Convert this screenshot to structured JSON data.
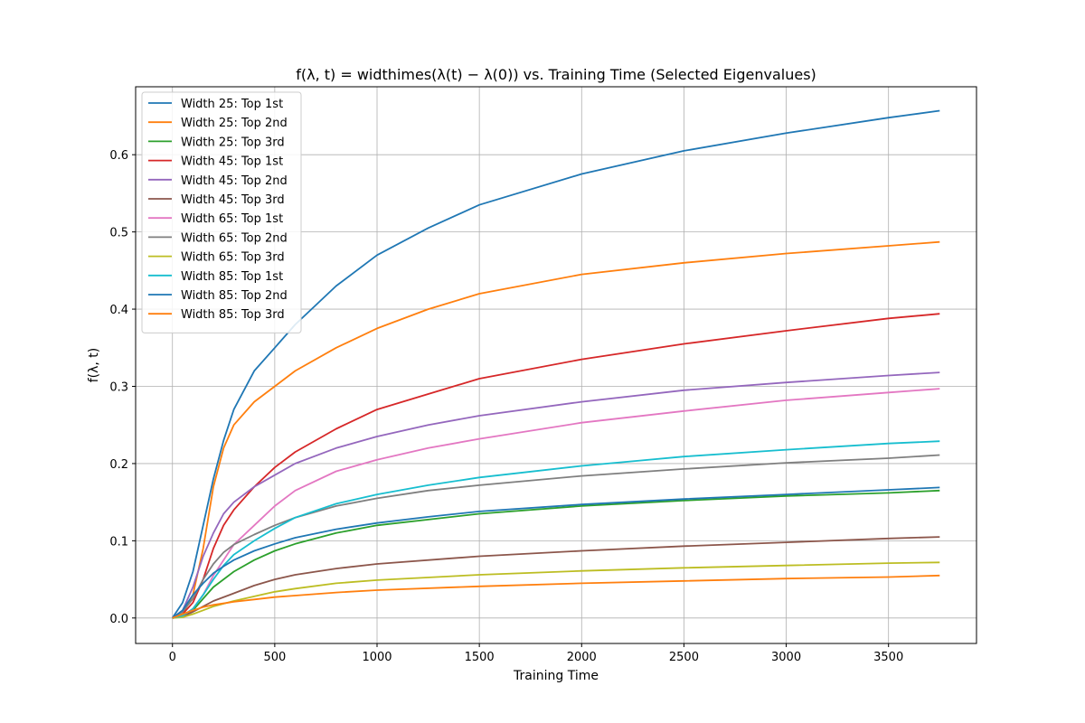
{
  "chart_data": {
    "type": "line",
    "title": "f(λ, t) = widthimes(λ(t) − λ(0)) vs. Training Time (Selected Eigenvalues)",
    "xlabel": "Training Time",
    "ylabel": "f(λ, t)",
    "xlim": [
      -180,
      3930
    ],
    "ylim": [
      -0.033,
      0.688
    ],
    "xticks": [
      0,
      500,
      1000,
      1500,
      2000,
      2500,
      3000,
      3500
    ],
    "yticks": [
      0.0,
      0.1,
      0.2,
      0.3,
      0.4,
      0.5,
      0.6
    ],
    "grid": true,
    "legend_position": "top-left",
    "series": [
      {
        "name": "Width 25: Top 1st",
        "color": "#1f77b4",
        "x": [
          0,
          50,
          100,
          150,
          200,
          250,
          300,
          400,
          500,
          600,
          800,
          1000,
          1250,
          1500,
          2000,
          2500,
          3000,
          3500,
          3750
        ],
        "values": [
          0.0,
          0.02,
          0.06,
          0.12,
          0.18,
          0.23,
          0.27,
          0.32,
          0.35,
          0.38,
          0.43,
          0.47,
          0.505,
          0.535,
          0.575,
          0.605,
          0.628,
          0.648,
          0.657
        ]
      },
      {
        "name": "Width 25: Top 2nd",
        "color": "#ff7f0e",
        "x": [
          0,
          50,
          100,
          150,
          200,
          250,
          300,
          400,
          500,
          600,
          800,
          1000,
          1250,
          1500,
          2000,
          2500,
          3000,
          3500,
          3750
        ],
        "values": [
          0.0,
          0.005,
          0.03,
          0.09,
          0.17,
          0.22,
          0.25,
          0.28,
          0.3,
          0.32,
          0.35,
          0.375,
          0.4,
          0.42,
          0.445,
          0.46,
          0.472,
          0.482,
          0.487
        ]
      },
      {
        "name": "Width 25: Top 3rd",
        "color": "#2ca02c",
        "x": [
          0,
          50,
          100,
          150,
          200,
          300,
          400,
          500,
          600,
          800,
          1000,
          1500,
          2000,
          2500,
          3000,
          3500,
          3750
        ],
        "values": [
          0.0,
          0.002,
          0.01,
          0.025,
          0.04,
          0.06,
          0.075,
          0.087,
          0.096,
          0.11,
          0.12,
          0.135,
          0.145,
          0.152,
          0.158,
          0.162,
          0.165
        ]
      },
      {
        "name": "Width 45: Top 1st",
        "color": "#d62728",
        "x": [
          0,
          50,
          100,
          150,
          200,
          250,
          300,
          400,
          500,
          600,
          800,
          1000,
          1250,
          1500,
          2000,
          2500,
          3000,
          3500,
          3750
        ],
        "values": [
          0.0,
          0.005,
          0.02,
          0.05,
          0.09,
          0.12,
          0.14,
          0.17,
          0.195,
          0.215,
          0.245,
          0.27,
          0.29,
          0.31,
          0.335,
          0.355,
          0.372,
          0.388,
          0.394
        ]
      },
      {
        "name": "Width 45: Top 2nd",
        "color": "#9467bd",
        "x": [
          0,
          50,
          100,
          150,
          200,
          250,
          300,
          400,
          500,
          600,
          800,
          1000,
          1250,
          1500,
          2000,
          2500,
          3000,
          3500,
          3750
        ],
        "values": [
          0.0,
          0.01,
          0.04,
          0.08,
          0.11,
          0.135,
          0.15,
          0.17,
          0.185,
          0.2,
          0.22,
          0.235,
          0.25,
          0.262,
          0.28,
          0.295,
          0.305,
          0.314,
          0.318
        ]
      },
      {
        "name": "Width 45: Top 3rd",
        "color": "#8c564b",
        "x": [
          0,
          50,
          100,
          150,
          200,
          300,
          400,
          500,
          600,
          800,
          1000,
          1500,
          2000,
          2500,
          3000,
          3500,
          3750
        ],
        "values": [
          0.0,
          0.002,
          0.008,
          0.015,
          0.022,
          0.032,
          0.042,
          0.05,
          0.056,
          0.064,
          0.07,
          0.08,
          0.087,
          0.093,
          0.098,
          0.103,
          0.105
        ]
      },
      {
        "name": "Width 65: Top 1st",
        "color": "#e377c2",
        "x": [
          0,
          50,
          100,
          150,
          200,
          250,
          300,
          400,
          500,
          600,
          800,
          1000,
          1250,
          1500,
          2000,
          2500,
          3000,
          3500,
          3750
        ],
        "values": [
          0.0,
          0.003,
          0.012,
          0.03,
          0.055,
          0.075,
          0.095,
          0.12,
          0.145,
          0.165,
          0.19,
          0.205,
          0.22,
          0.232,
          0.253,
          0.268,
          0.282,
          0.292,
          0.297
        ]
      },
      {
        "name": "Width 65: Top 2nd",
        "color": "#7f7f7f",
        "x": [
          0,
          50,
          100,
          150,
          200,
          250,
          300,
          400,
          500,
          600,
          800,
          1000,
          1250,
          1500,
          2000,
          2500,
          3000,
          3500,
          3750
        ],
        "values": [
          0.0,
          0.008,
          0.025,
          0.05,
          0.07,
          0.085,
          0.095,
          0.108,
          0.12,
          0.13,
          0.145,
          0.155,
          0.165,
          0.172,
          0.184,
          0.193,
          0.201,
          0.207,
          0.211
        ]
      },
      {
        "name": "Width 65: Top 3rd",
        "color": "#bcbd22",
        "x": [
          0,
          50,
          100,
          150,
          200,
          300,
          400,
          500,
          600,
          800,
          1000,
          1500,
          2000,
          2500,
          3000,
          3500,
          3750
        ],
        "values": [
          0.0,
          0.001,
          0.005,
          0.01,
          0.015,
          0.022,
          0.028,
          0.034,
          0.038,
          0.045,
          0.049,
          0.056,
          0.061,
          0.065,
          0.068,
          0.071,
          0.072
        ]
      },
      {
        "name": "Width 85: Top 1st",
        "color": "#17becf",
        "x": [
          0,
          50,
          100,
          150,
          200,
          250,
          300,
          400,
          500,
          600,
          800,
          1000,
          1250,
          1500,
          2000,
          2500,
          3000,
          3500,
          3750
        ],
        "values": [
          0.0,
          0.003,
          0.012,
          0.03,
          0.05,
          0.068,
          0.082,
          0.1,
          0.116,
          0.13,
          0.148,
          0.16,
          0.172,
          0.182,
          0.197,
          0.209,
          0.218,
          0.226,
          0.229
        ]
      },
      {
        "name": "Width 85: Top 2nd",
        "color": "#1f77b4",
        "x": [
          0,
          50,
          100,
          150,
          200,
          250,
          300,
          400,
          500,
          600,
          800,
          1000,
          1250,
          1500,
          2000,
          2500,
          3000,
          3500,
          3750
        ],
        "values": [
          0.0,
          0.01,
          0.03,
          0.045,
          0.058,
          0.067,
          0.075,
          0.087,
          0.096,
          0.104,
          0.115,
          0.123,
          0.131,
          0.138,
          0.147,
          0.154,
          0.16,
          0.166,
          0.169
        ]
      },
      {
        "name": "Width 85: Top 3rd",
        "color": "#ff7f0e",
        "x": [
          0,
          50,
          100,
          150,
          200,
          300,
          400,
          500,
          600,
          800,
          1000,
          1500,
          2000,
          2500,
          3000,
          3500,
          3750
        ],
        "values": [
          0.0,
          0.005,
          0.01,
          0.014,
          0.017,
          0.021,
          0.024,
          0.027,
          0.029,
          0.033,
          0.036,
          0.041,
          0.045,
          0.048,
          0.051,
          0.053,
          0.055
        ]
      }
    ]
  }
}
